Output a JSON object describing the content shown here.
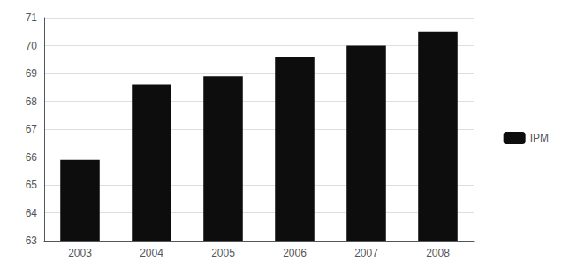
{
  "chart_data": {
    "type": "bar",
    "categories": [
      "2003",
      "2004",
      "2005",
      "2006",
      "2007",
      "2008"
    ],
    "series": [
      {
        "name": "IPM",
        "color": "#0d0d0d",
        "values": [
          65.9,
          68.6,
          68.9,
          69.6,
          70.0,
          70.5
        ]
      }
    ],
    "ylim": [
      63,
      71
    ],
    "yticks": [
      63,
      64,
      65,
      66,
      67,
      68,
      69,
      70,
      71
    ],
    "grid": true,
    "legend": "right"
  }
}
